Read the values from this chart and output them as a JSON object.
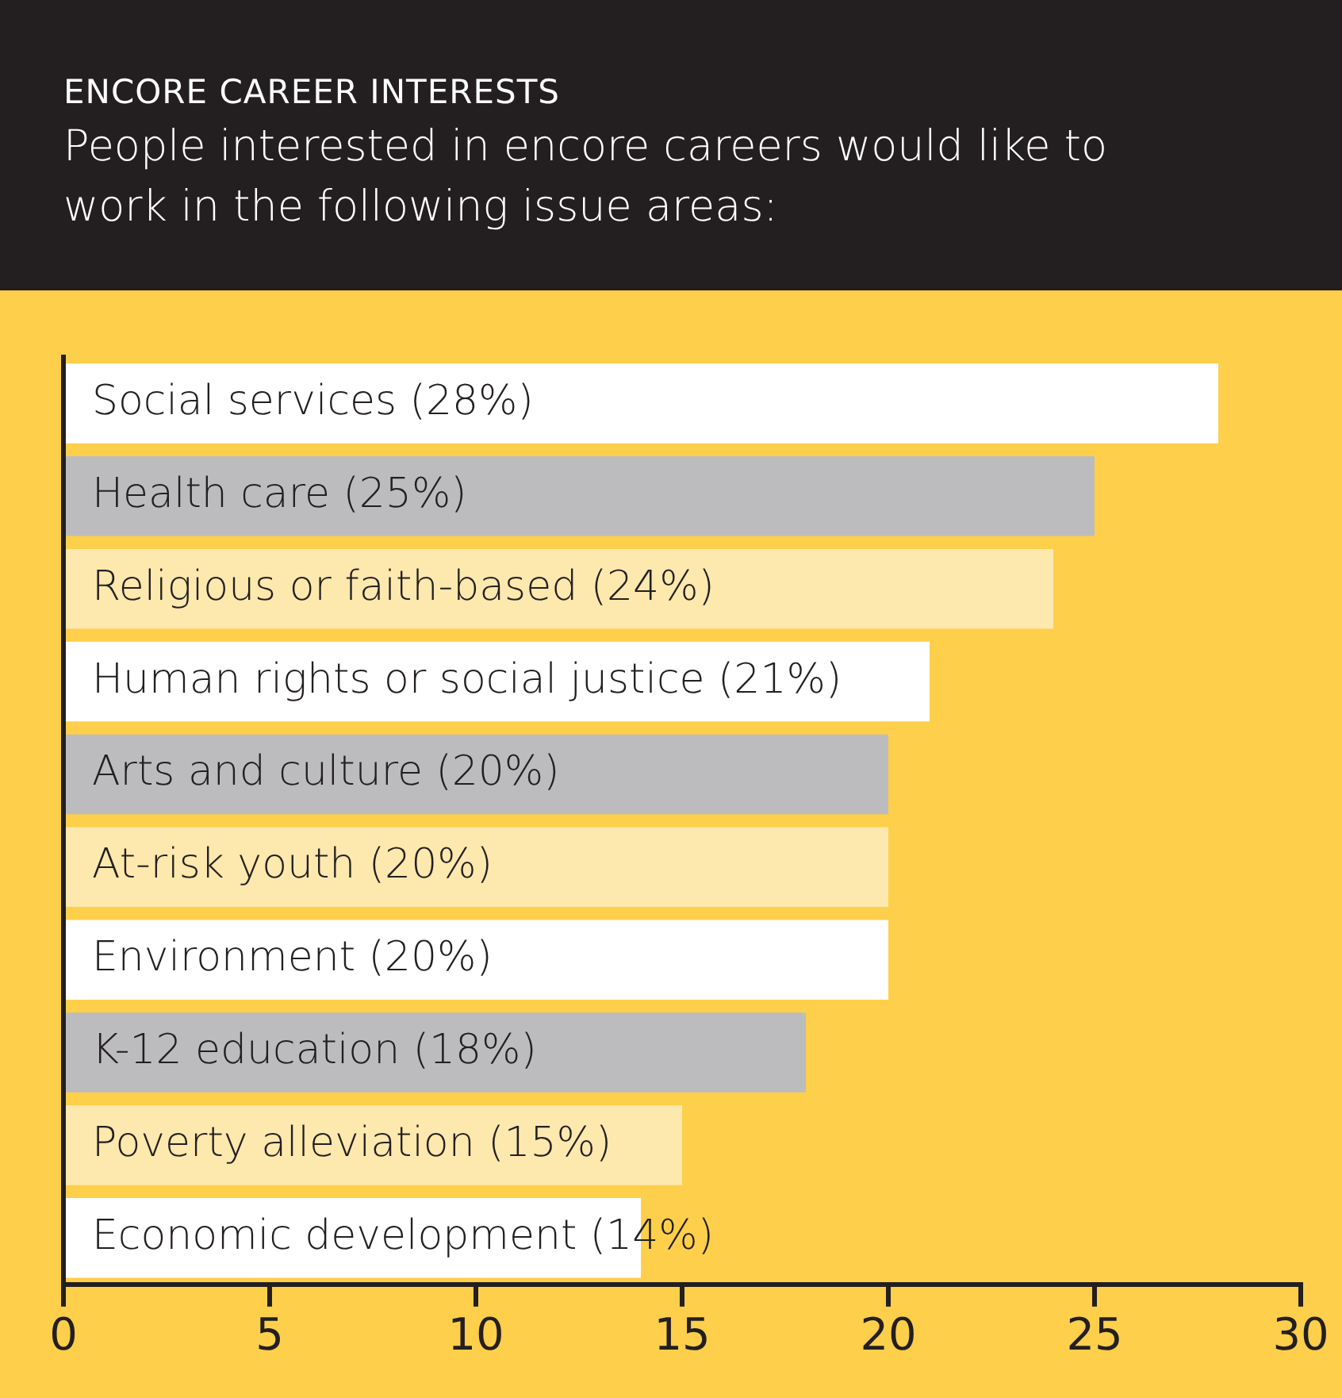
{
  "chart_data": {
    "type": "bar",
    "orientation": "horizontal",
    "title": "ENCORE CAREER INTERESTS",
    "subtitle": "People interested in encore careers would like to work in the following issue areas:",
    "categories": [
      "Social services (28%)",
      "Health care (25%)",
      "Religious or faith-based (24%)",
      "Human rights or social justice (21%)",
      "Arts and culture (20%)",
      "At-risk youth (20%)",
      "Environment (20%)",
      "K-12 education (18%)",
      "Poverty alleviation (15%)",
      "Economic development (14%)"
    ],
    "values": [
      28,
      25,
      24,
      21,
      20,
      20,
      20,
      18,
      15,
      14
    ],
    "colors": [
      "#ffffff",
      "#bcbcbe",
      "#fde8ae",
      "#ffffff",
      "#bcbcbe",
      "#fde8ae",
      "#ffffff",
      "#bcbcbe",
      "#fde8ae",
      "#ffffff"
    ],
    "xlim": [
      0,
      30
    ],
    "xticks": [
      0,
      5,
      10,
      15,
      20,
      25,
      30
    ],
    "grid": false,
    "legend": false
  }
}
